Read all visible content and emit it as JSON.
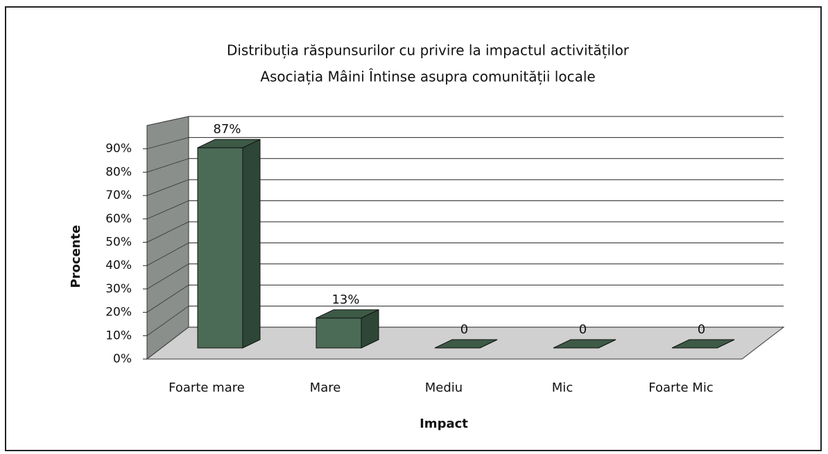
{
  "chart_data": {
    "type": "bar3d",
    "title": [
      "Distribuția răspunsurilor cu privire la impactul activităților",
      "Asociația Mâini Întinse asupra comunității locale"
    ],
    "x_label": "Impact",
    "y_label": "Procente",
    "categories": [
      "Foarte mare",
      "Mare",
      "Mediu",
      "Mic",
      "Foarte Mic"
    ],
    "values": [
      87,
      13,
      0,
      0,
      0
    ],
    "value_labels": [
      "87%",
      "13%",
      "0",
      "0",
      "0"
    ],
    "color": "#4b6b56",
    "ylim": [
      0,
      100
    ],
    "yticks": [
      {
        "value": 0,
        "label": "0%"
      },
      {
        "value": 10,
        "label": "10%"
      },
      {
        "value": 20,
        "label": "20%"
      },
      {
        "value": 30,
        "label": "30%"
      },
      {
        "value": 40,
        "label": "40%"
      },
      {
        "value": 50,
        "label": "50%"
      },
      {
        "value": 60,
        "label": "60%"
      },
      {
        "value": 70,
        "label": "70%"
      },
      {
        "value": 80,
        "label": "80%"
      },
      {
        "value": 90,
        "label": "90%"
      }
    ],
    "grid": true
  }
}
